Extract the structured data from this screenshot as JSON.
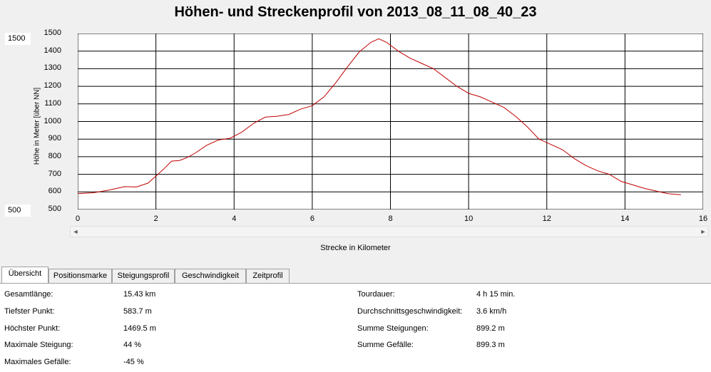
{
  "title": "Höhen- und Streckenprofil von 2013_08_11_08_40_23",
  "y_range_max_box": "1500",
  "y_range_min_box": "500",
  "chart_data": {
    "type": "line",
    "ylabel": "Höhe in Meter [über NN]",
    "xlabel": "Strecke in Kilometer",
    "xlim": [
      0,
      16
    ],
    "ylim": [
      500,
      1500
    ],
    "x_ticks": [
      "0",
      "2",
      "4",
      "6",
      "8",
      "10",
      "12",
      "14",
      "16"
    ],
    "y_ticks": [
      "1500",
      "1400",
      "1300",
      "1200",
      "1100",
      "1000",
      "900",
      "800",
      "700",
      "600",
      "500"
    ],
    "grid": true,
    "line_color": "#c00000",
    "series": [
      {
        "x": [
          0,
          0.4,
          0.8,
          1.2,
          1.5,
          1.8,
          2.0,
          2.2,
          2.4,
          2.6,
          2.8,
          3.0,
          3.3,
          3.6,
          3.9,
          4.2,
          4.5,
          4.8,
          5.1,
          5.4,
          5.7,
          6.0,
          6.3,
          6.6,
          6.9,
          7.2,
          7.5,
          7.7,
          7.9,
          8.2,
          8.5,
          8.8,
          9.1,
          9.4,
          9.7,
          10.0,
          10.3,
          10.6,
          10.9,
          11.2,
          11.5,
          11.8,
          12.1,
          12.4,
          12.7,
          13.0,
          13.3,
          13.6,
          13.9,
          14.2,
          14.5,
          14.8,
          15.1,
          15.43
        ],
        "y": [
          590,
          595,
          610,
          630,
          628,
          650,
          690,
          730,
          775,
          778,
          795,
          820,
          865,
          895,
          905,
          940,
          990,
          1025,
          1030,
          1040,
          1070,
          1090,
          1140,
          1220,
          1310,
          1395,
          1450,
          1470,
          1450,
          1400,
          1360,
          1330,
          1300,
          1250,
          1200,
          1160,
          1140,
          1110,
          1080,
          1030,
          970,
          900,
          870,
          840,
          790,
          750,
          720,
          700,
          660,
          640,
          620,
          605,
          590,
          584
        ]
      }
    ]
  },
  "scroll": {
    "left_arrow": "◄",
    "right_arrow": "►"
  },
  "tabs": [
    "Übersicht",
    "Positionsmarke",
    "Steigungsprofil",
    "Geschwindigkeit",
    "Zeitprofil"
  ],
  "stats_left": [
    {
      "label": "Gesamtlänge:",
      "value": "15.43 km"
    },
    {
      "label": "Tiefster Punkt:",
      "value": "583.7 m"
    },
    {
      "label": "Höchster Punkt:",
      "value": "1469.5 m"
    },
    {
      "label": "Maximale Steigung:",
      "value": "44 %"
    },
    {
      "label": "Maximales Gefälle:",
      "value": "-45 %"
    }
  ],
  "stats_right": [
    {
      "label": "Tourdauer:",
      "value": "4 h 15 min."
    },
    {
      "label": "Durchschnittsgeschwindigkeit:",
      "value": "3.6 km/h"
    },
    {
      "label": "Summe Steigungen:",
      "value": "899.2 m"
    },
    {
      "label": "Summe Gefälle:",
      "value": "899.3 m"
    }
  ]
}
